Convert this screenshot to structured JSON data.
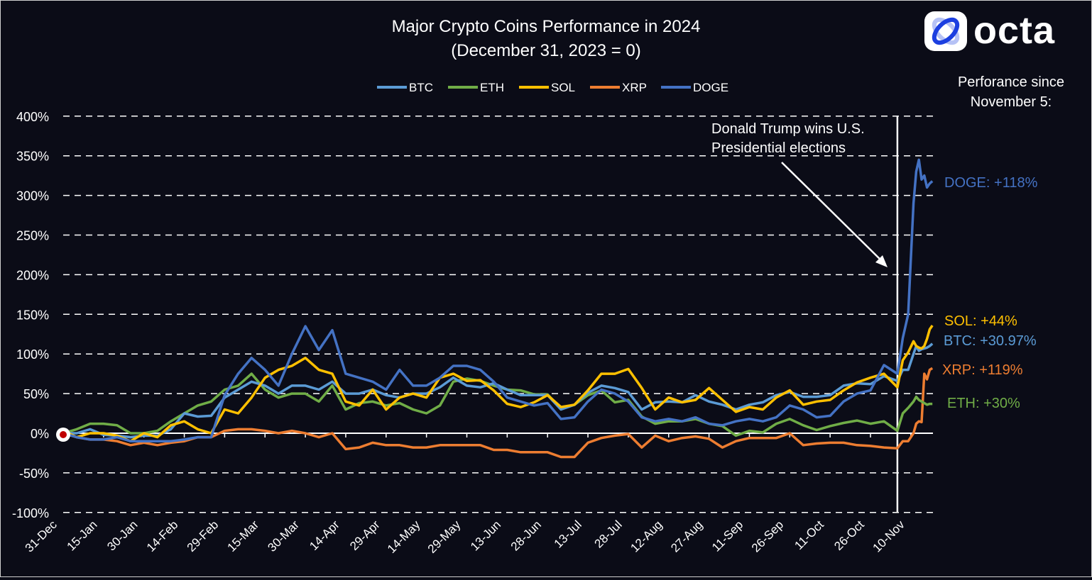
{
  "chart_data": {
    "type": "line",
    "title": "Major Crypto Coins Performance  in 2024",
    "subtitle": "(December 31, 2023 = 0)",
    "ylabel": "",
    "xlabel": "",
    "ylim": [
      -100,
      400
    ],
    "yticks": [
      -100,
      -50,
      0,
      50,
      100,
      150,
      200,
      250,
      300,
      350,
      400
    ],
    "ytick_labels": [
      "-100%",
      "-50%",
      "0%",
      "50%",
      "100%",
      "150%",
      "200%",
      "250%",
      "300%",
      "350%",
      "400%"
    ],
    "xlim": [
      "2023-12-31",
      "2024-11-18"
    ],
    "xtick_dates": [
      "2023-12-31",
      "2024-01-15",
      "2024-01-30",
      "2024-02-14",
      "2024-02-29",
      "2024-03-15",
      "2024-03-30",
      "2024-04-14",
      "2024-04-29",
      "2024-05-14",
      "2024-05-29",
      "2024-06-13",
      "2024-06-28",
      "2024-07-13",
      "2024-07-28",
      "2024-08-12",
      "2024-08-27",
      "2024-09-11",
      "2024-09-26",
      "2024-10-11",
      "2024-10-26",
      "2024-11-10"
    ],
    "xtick_labels": [
      "31-Dec",
      "15-Jan",
      "30-Jan",
      "14-Feb",
      "29-Feb",
      "15-Mar",
      "30-Mar",
      "14-Apr",
      "29-Apr",
      "14-May",
      "29-May",
      "13-Jun",
      "28-Jun",
      "13-Jul",
      "28-Jul",
      "12-Aug",
      "27-Aug",
      "11-Sep",
      "26-Sep",
      "11-Oct",
      "26-Oct",
      "10-Nov"
    ],
    "grid": "horizontal dashed",
    "legend_position": "top-center",
    "x": [
      "2023-12-31",
      "2024-01-05",
      "2024-01-10",
      "2024-01-15",
      "2024-01-20",
      "2024-01-25",
      "2024-01-30",
      "2024-02-04",
      "2024-02-09",
      "2024-02-14",
      "2024-02-19",
      "2024-02-24",
      "2024-02-29",
      "2024-03-05",
      "2024-03-10",
      "2024-03-15",
      "2024-03-20",
      "2024-03-25",
      "2024-03-30",
      "2024-04-04",
      "2024-04-09",
      "2024-04-14",
      "2024-04-19",
      "2024-04-24",
      "2024-04-29",
      "2024-05-04",
      "2024-05-09",
      "2024-05-14",
      "2024-05-19",
      "2024-05-24",
      "2024-05-29",
      "2024-06-03",
      "2024-06-08",
      "2024-06-13",
      "2024-06-18",
      "2024-06-23",
      "2024-06-28",
      "2024-07-03",
      "2024-07-08",
      "2024-07-13",
      "2024-07-18",
      "2024-07-23",
      "2024-07-28",
      "2024-08-02",
      "2024-08-07",
      "2024-08-12",
      "2024-08-17",
      "2024-08-22",
      "2024-08-27",
      "2024-09-01",
      "2024-09-06",
      "2024-09-11",
      "2024-09-16",
      "2024-09-21",
      "2024-09-26",
      "2024-10-01",
      "2024-10-06",
      "2024-10-11",
      "2024-10-16",
      "2024-10-21",
      "2024-10-26",
      "2024-10-31",
      "2024-11-05",
      "2024-11-07",
      "2024-11-09",
      "2024-11-11",
      "2024-11-12",
      "2024-11-13",
      "2024-11-14",
      "2024-11-15",
      "2024-11-16",
      "2024-11-17",
      "2024-11-18"
    ],
    "series": [
      {
        "name": "BTC",
        "color": "#5B9BD5",
        "values": [
          0,
          0,
          5,
          -2,
          -3,
          -5,
          -3,
          -3,
          5,
          25,
          21,
          22,
          45,
          55,
          65,
          60,
          50,
          60,
          60,
          55,
          65,
          50,
          50,
          55,
          48,
          45,
          50,
          50,
          58,
          70,
          60,
          58,
          63,
          55,
          48,
          48,
          48,
          30,
          36,
          51,
          60,
          57,
          52,
          30,
          39,
          40,
          39,
          48,
          40,
          36,
          30,
          36,
          39,
          48,
          52,
          46,
          46,
          48,
          60,
          63,
          62,
          72,
          66,
          80,
          80,
          100,
          110,
          104,
          106,
          107,
          108,
          110,
          113
        ]
      },
      {
        "name": "ETH",
        "color": "#70AD47",
        "values": [
          0,
          5,
          12,
          12,
          10,
          0,
          0,
          3,
          15,
          25,
          35,
          40,
          55,
          60,
          75,
          55,
          45,
          50,
          50,
          40,
          60,
          30,
          38,
          40,
          35,
          38,
          30,
          25,
          35,
          65,
          69,
          66,
          60,
          55,
          54,
          49,
          49,
          31,
          36,
          48,
          54,
          39,
          42,
          21,
          12,
          15,
          15,
          18,
          12,
          9,
          -3,
          3,
          1,
          12,
          18,
          10,
          4,
          9,
          13,
          16,
          12,
          15,
          3,
          25,
          32,
          40,
          46,
          42,
          40,
          38,
          36,
          37,
          37
        ]
      },
      {
        "name": "SOL",
        "color": "#FFC000",
        "values": [
          3,
          -5,
          0,
          0,
          -3,
          -10,
          0,
          -5,
          10,
          15,
          5,
          0,
          30,
          25,
          45,
          70,
          80,
          85,
          95,
          80,
          75,
          40,
          35,
          55,
          30,
          45,
          50,
          45,
          70,
          75,
          66,
          67,
          54,
          37,
          33,
          39,
          48,
          33,
          36,
          54,
          75,
          75,
          81,
          57,
          30,
          45,
          39,
          42,
          57,
          42,
          27,
          33,
          30,
          45,
          54,
          36,
          40,
          42,
          54,
          64,
          70,
          75,
          58,
          92,
          102,
          116,
          110,
          108,
          107,
          110,
          119,
          131,
          136
        ]
      },
      {
        "name": "XRP",
        "color": "#ED7D31",
        "values": [
          0,
          -5,
          -8,
          -8,
          -10,
          -15,
          -12,
          -15,
          -12,
          -10,
          -5,
          -5,
          3,
          5,
          5,
          3,
          0,
          3,
          0,
          -5,
          0,
          -20,
          -18,
          -12,
          -15,
          -15,
          -18,
          -18,
          -15,
          -15,
          -15,
          -15,
          -21,
          -21,
          -24,
          -24,
          -24,
          -30,
          -30,
          -12,
          -6,
          -3,
          -1,
          -18,
          -3,
          -10,
          -6,
          -4,
          -7,
          -18,
          -10,
          -6,
          -6,
          -6,
          0,
          -15,
          -13,
          -12,
          -12,
          -15,
          -16,
          -18,
          -19,
          -10,
          -10,
          0,
          12,
          15,
          14,
          75,
          68,
          80,
          82
        ]
      },
      {
        "name": "DOGE",
        "color": "#4472C4",
        "values": [
          0,
          -5,
          -8,
          -8,
          -5,
          -10,
          -10,
          -10,
          -10,
          -8,
          -5,
          -5,
          48,
          75,
          95,
          80,
          60,
          100,
          135,
          105,
          130,
          75,
          70,
          65,
          55,
          80,
          60,
          60,
          70,
          85,
          85,
          80,
          65,
          45,
          40,
          35,
          38,
          18,
          20,
          40,
          55,
          50,
          40,
          20,
          15,
          18,
          15,
          20,
          12,
          10,
          15,
          18,
          15,
          20,
          35,
          30,
          20,
          22,
          40,
          50,
          54,
          86,
          75,
          120,
          150,
          290,
          330,
          345,
          320,
          325,
          310,
          315,
          318
        ]
      }
    ],
    "annotations": {
      "event_date": "2024-11-05",
      "event_text_line1": "Donald Trump wins U.S.",
      "event_text_line2": "Presidential elections",
      "side_title_line1": "Perforance since",
      "side_title_line2": "November 5:",
      "end_labels": [
        {
          "series": "DOGE",
          "text": "DOGE: +118%",
          "color": "#4472C4"
        },
        {
          "series": "SOL",
          "text": "SOL: +44%",
          "color": "#FFC000"
        },
        {
          "series": "BTC",
          "text": "BTC: +30.97%",
          "color": "#5B9BD5"
        },
        {
          "series": "XRP",
          "text": "XRP: +119%",
          "color": "#ED7D31"
        },
        {
          "series": "ETH",
          "text": "ETH: +30%",
          "color": "#70AD47"
        }
      ]
    }
  },
  "brand": {
    "logo_text": "octa"
  },
  "colors": {
    "background": "#0b0c17",
    "grid": "#ffffff",
    "text": "#ffffff"
  }
}
